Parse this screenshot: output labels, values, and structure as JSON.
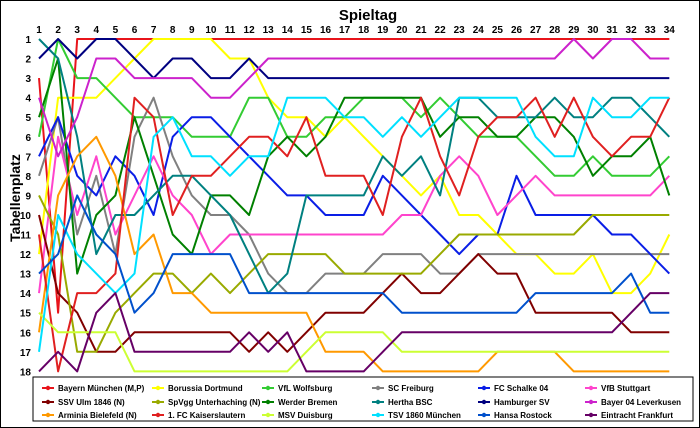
{
  "chart_data": {
    "type": "line",
    "title": "Spieltag",
    "xlabel": "Spieltag",
    "ylabel": "Tabellenplatz",
    "x": [
      1,
      2,
      3,
      4,
      5,
      6,
      7,
      8,
      9,
      10,
      11,
      12,
      13,
      14,
      15,
      16,
      17,
      18,
      19,
      20,
      21,
      22,
      23,
      24,
      25,
      26,
      27,
      28,
      29,
      30,
      31,
      32,
      33,
      34
    ],
    "ylim": [
      1,
      18
    ],
    "y_inverted": true,
    "grid": false,
    "legend_position": "bottom",
    "series": [
      {
        "name": "Bayern München (M,P)",
        "color": "#e8141b",
        "values": [
          3,
          15,
          1,
          1,
          1,
          1,
          1,
          1,
          1,
          1,
          1,
          1,
          1,
          1,
          1,
          1,
          1,
          1,
          1,
          1,
          1,
          1,
          1,
          1,
          1,
          1,
          1,
          1,
          1,
          1,
          1,
          1,
          1,
          1
        ]
      },
      {
        "name": "Borussia Dortmund",
        "color": "#ffff00",
        "values": [
          12,
          4,
          4,
          4,
          3,
          2,
          1,
          1,
          1,
          1,
          2,
          2,
          4,
          5,
          5,
          6,
          5,
          6,
          7,
          8,
          9,
          8,
          10,
          10,
          11,
          12,
          12,
          13,
          13,
          12,
          14,
          14,
          13,
          11
        ]
      },
      {
        "name": "VfL Wolfsburg",
        "color": "#33cc33",
        "values": [
          6,
          1,
          3,
          3,
          4,
          5,
          5,
          5,
          6,
          6,
          6,
          4,
          4,
          6,
          6,
          5,
          5,
          4,
          4,
          4,
          5,
          4,
          5,
          6,
          6,
          6,
          7,
          8,
          8,
          7,
          8,
          8,
          8,
          7
        ]
      },
      {
        "name": "SC Freiburg",
        "color": "#808080",
        "values": [
          8,
          5,
          11,
          8,
          12,
          6,
          4,
          7,
          9,
          10,
          10,
          11,
          13,
          14,
          14,
          13,
          13,
          13,
          12,
          12,
          12,
          13,
          13,
          12,
          12,
          12,
          12,
          12,
          12,
          12,
          12,
          12,
          12,
          12
        ]
      },
      {
        "name": "FC Schalke 04",
        "color": "#0a1ee6",
        "values": [
          7,
          5,
          8,
          9,
          7,
          8,
          10,
          6,
          5,
          5,
          6,
          7,
          8,
          9,
          9,
          10,
          10,
          10,
          8,
          9,
          10,
          11,
          12,
          11,
          11,
          8,
          10,
          10,
          10,
          10,
          11,
          11,
          12,
          13
        ]
      },
      {
        "name": "VfB Stuttgart",
        "color": "#ff44cc",
        "values": [
          14,
          6,
          10,
          7,
          11,
          9,
          7,
          9,
          10,
          12,
          11,
          11,
          11,
          11,
          11,
          11,
          11,
          11,
          11,
          10,
          10,
          8,
          7,
          8,
          10,
          9,
          8,
          9,
          9,
          9,
          9,
          9,
          9,
          8
        ]
      },
      {
        "name": "SSV Ulm 1846 (N)",
        "color": "#800000",
        "values": [
          10,
          14,
          15,
          17,
          17,
          16,
          16,
          16,
          16,
          16,
          16,
          17,
          16,
          17,
          16,
          15,
          15,
          15,
          14,
          13,
          14,
          14,
          13,
          12,
          13,
          13,
          15,
          15,
          15,
          15,
          15,
          16,
          16,
          16
        ]
      },
      {
        "name": "SpVgg Unterhaching (N)",
        "color": "#99aa00",
        "values": [
          9,
          11,
          17,
          17,
          15,
          14,
          13,
          13,
          14,
          13,
          14,
          13,
          12,
          12,
          12,
          12,
          13,
          13,
          13,
          13,
          13,
          12,
          11,
          11,
          11,
          11,
          11,
          11,
          11,
          10,
          10,
          10,
          10,
          10
        ]
      },
      {
        "name": "Werder Bremen",
        "color": "#008000",
        "values": [
          5,
          2,
          13,
          10,
          9,
          5,
          8,
          11,
          12,
          9,
          9,
          10,
          7,
          6,
          7,
          6,
          4,
          4,
          4,
          4,
          4,
          6,
          5,
          5,
          6,
          6,
          5,
          5,
          6,
          8,
          7,
          7,
          6,
          9
        ]
      },
      {
        "name": "Hertha BSC",
        "color": "#008080",
        "values": [
          1,
          2,
          6,
          12,
          10,
          10,
          9,
          8,
          8,
          9,
          10,
          12,
          14,
          13,
          9,
          9,
          9,
          9,
          7,
          8,
          7,
          9,
          4,
          4,
          5,
          5,
          5,
          4,
          5,
          5,
          4,
          4,
          5,
          6
        ]
      },
      {
        "name": "Hamburger SV",
        "color": "#000080",
        "values": [
          2,
          1,
          2,
          1,
          1,
          2,
          3,
          2,
          2,
          3,
          3,
          2,
          3,
          3,
          3,
          3,
          3,
          3,
          3,
          3,
          3,
          3,
          3,
          3,
          3,
          3,
          3,
          3,
          3,
          3,
          3,
          3,
          3,
          3
        ]
      },
      {
        "name": "Bayer 04 Leverkusen",
        "color": "#cc22cc",
        "values": [
          4,
          7,
          5,
          2,
          2,
          3,
          3,
          3,
          3,
          4,
          4,
          3,
          2,
          2,
          2,
          2,
          2,
          2,
          2,
          2,
          2,
          2,
          2,
          2,
          2,
          2,
          2,
          2,
          1,
          2,
          1,
          1,
          2,
          2
        ]
      },
      {
        "name": "Arminia Bielefeld (N)",
        "color": "#ff9900",
        "values": [
          16,
          9,
          7,
          6,
          8,
          12,
          11,
          14,
          14,
          15,
          15,
          15,
          15,
          15,
          15,
          17,
          17,
          17,
          18,
          18,
          18,
          18,
          18,
          18,
          17,
          17,
          17,
          17,
          18,
          18,
          18,
          18,
          18,
          18
        ]
      },
      {
        "name": "1. FC Kaiserslautern",
        "color": "#e02020",
        "values": [
          11,
          18,
          14,
          14,
          13,
          4,
          5,
          10,
          8,
          8,
          7,
          6,
          6,
          7,
          5,
          8,
          8,
          8,
          10,
          6,
          4,
          7,
          9,
          6,
          5,
          5,
          4,
          6,
          4,
          6,
          7,
          6,
          6,
          4
        ]
      },
      {
        "name": "MSV Duisburg",
        "color": "#ccff33",
        "values": [
          15,
          16,
          16,
          16,
          16,
          18,
          18,
          18,
          18,
          18,
          18,
          18,
          18,
          18,
          17,
          16,
          16,
          16,
          16,
          17,
          17,
          17,
          17,
          17,
          17,
          17,
          17,
          17,
          17,
          17,
          17,
          17,
          17,
          17
        ]
      },
      {
        "name": "TSV 1860 München",
        "color": "#00e0ff",
        "values": [
          17,
          10,
          12,
          13,
          14,
          13,
          6,
          5,
          7,
          7,
          8,
          7,
          7,
          4,
          4,
          4,
          5,
          5,
          6,
          5,
          6,
          5,
          4,
          4,
          4,
          4,
          6,
          7,
          7,
          4,
          5,
          5,
          4,
          4
        ]
      },
      {
        "name": "Hansa Rostock",
        "color": "#0050cc",
        "values": [
          13,
          12,
          9,
          11,
          12,
          15,
          14,
          12,
          12,
          12,
          12,
          14,
          14,
          14,
          14,
          14,
          14,
          14,
          14,
          15,
          15,
          15,
          15,
          15,
          15,
          15,
          14,
          14,
          14,
          14,
          14,
          13,
          15,
          15
        ]
      },
      {
        "name": "Eintracht Frankfurt",
        "color": "#660066",
        "values": [
          18,
          17,
          18,
          15,
          14,
          17,
          17,
          17,
          17,
          17,
          17,
          16,
          17,
          16,
          18,
          18,
          18,
          18,
          17,
          16,
          16,
          16,
          16,
          16,
          16,
          16,
          16,
          16,
          16,
          16,
          16,
          15,
          14,
          14
        ]
      }
    ]
  }
}
